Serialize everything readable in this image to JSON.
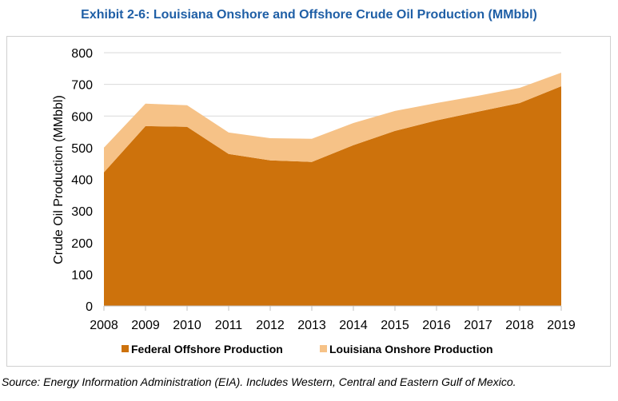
{
  "chart_data": {
    "type": "area",
    "stacked": true,
    "title": "Exhibit 2-6: Louisiana Onshore and Offshore Crude Oil Production (MMbbl)",
    "xlabel": "",
    "ylabel": "Crude Oil Production (MMbbl)",
    "categories": [
      "2008",
      "2009",
      "2010",
      "2011",
      "2012",
      "2013",
      "2014",
      "2015",
      "2016",
      "2017",
      "2018",
      "2019"
    ],
    "series": [
      {
        "name": "Federal Offshore Production",
        "color": "#CD720C",
        "values": [
          422,
          568,
          566,
          480,
          460,
          455,
          508,
          553,
          586,
          614,
          641,
          694
        ]
      },
      {
        "name": "Louisiana Onshore Production",
        "color": "#F6C287",
        "values": [
          78,
          71,
          68,
          68,
          70,
          73,
          70,
          63,
          55,
          50,
          48,
          43
        ]
      }
    ],
    "ylim": [
      0,
      800
    ],
    "yticks": [
      0,
      100,
      200,
      300,
      400,
      500,
      600,
      700,
      800
    ],
    "grid": true,
    "legend_position": "bottom"
  },
  "source": "Source: Energy Information Administration (EIA). Includes Western, Central and Eastern Gulf of Mexico."
}
